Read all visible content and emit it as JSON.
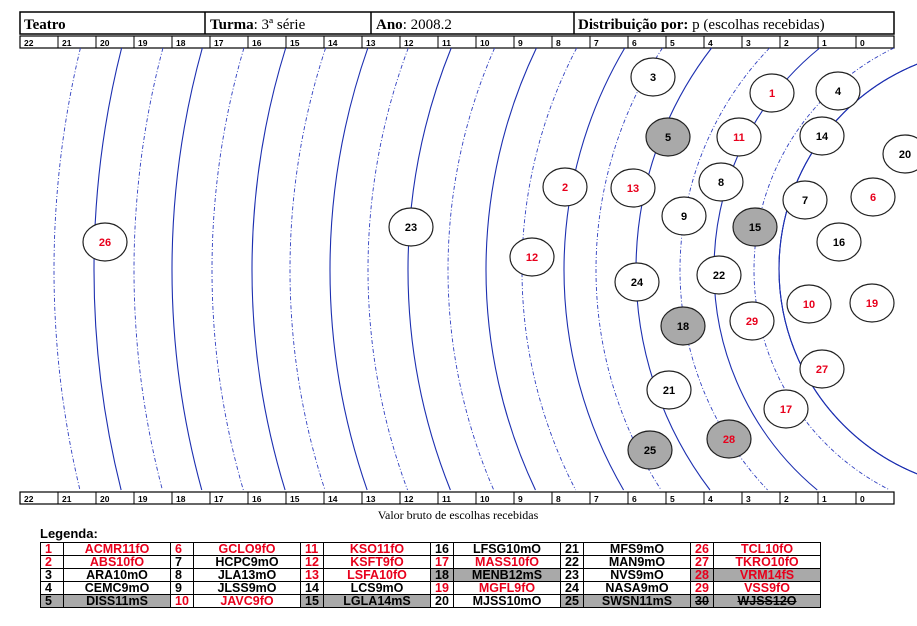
{
  "header": {
    "subject": "Teatro",
    "turma_label": "Turma",
    "turma_value": ": 3ª série",
    "ano_label": "Ano",
    "ano_value": ": 2008.2",
    "dist_label": "Distribuição por:",
    "dist_value": " p (escolhas recebidas)"
  },
  "chart_data": {
    "type": "scatter",
    "xlabel": "Valor bruto de escolhas recebidas",
    "scale_ticks": [
      "22",
      "21",
      "20",
      "19",
      "18",
      "17",
      "16",
      "15",
      "14",
      "13",
      "12",
      "11",
      "10",
      "9",
      "8",
      "7",
      "6",
      "5",
      "4",
      "3",
      "2",
      "1",
      "0"
    ],
    "nodes": [
      {
        "label": "1",
        "color": "red",
        "fill": "white"
      },
      {
        "label": "2",
        "color": "red",
        "fill": "white"
      },
      {
        "label": "3",
        "color": "black",
        "fill": "white"
      },
      {
        "label": "4",
        "color": "black",
        "fill": "white"
      },
      {
        "label": "5",
        "color": "black",
        "fill": "grey"
      },
      {
        "label": "6",
        "color": "red",
        "fill": "white"
      },
      {
        "label": "7",
        "color": "black",
        "fill": "white"
      },
      {
        "label": "8",
        "color": "black",
        "fill": "white"
      },
      {
        "label": "9",
        "color": "black",
        "fill": "white"
      },
      {
        "label": "10",
        "color": "red",
        "fill": "white"
      },
      {
        "label": "11",
        "color": "red",
        "fill": "white"
      },
      {
        "label": "12",
        "color": "red",
        "fill": "white"
      },
      {
        "label": "13",
        "color": "red",
        "fill": "white"
      },
      {
        "label": "14",
        "color": "black",
        "fill": "white"
      },
      {
        "label": "15",
        "color": "black",
        "fill": "grey"
      },
      {
        "label": "16",
        "color": "black",
        "fill": "white"
      },
      {
        "label": "17",
        "color": "red",
        "fill": "white"
      },
      {
        "label": "18",
        "color": "black",
        "fill": "grey"
      },
      {
        "label": "19",
        "color": "red",
        "fill": "white"
      },
      {
        "label": "20",
        "color": "black",
        "fill": "white"
      },
      {
        "label": "21",
        "color": "black",
        "fill": "white"
      },
      {
        "label": "22",
        "color": "black",
        "fill": "white"
      },
      {
        "label": "23",
        "color": "black",
        "fill": "white"
      },
      {
        "label": "24",
        "color": "black",
        "fill": "white"
      },
      {
        "label": "25",
        "color": "black",
        "fill": "grey"
      },
      {
        "label": "26",
        "color": "red",
        "fill": "white"
      },
      {
        "label": "27",
        "color": "red",
        "fill": "white"
      },
      {
        "label": "28",
        "color": "red",
        "fill": "grey"
      },
      {
        "label": "29",
        "color": "red",
        "fill": "white"
      }
    ]
  },
  "legend": {
    "title": "Legenda:",
    "rows": [
      [
        {
          "n": "1",
          "code": "ACMR11fO",
          "color": "red"
        },
        {
          "n": "6",
          "code": "GCLO9fO",
          "color": "red"
        },
        {
          "n": "11",
          "code": "KSO11fO",
          "color": "red"
        },
        {
          "n": "16",
          "code": "LFSG10mO",
          "color": "black"
        },
        {
          "n": "21",
          "code": "MFS9mO",
          "color": "black"
        },
        {
          "n": "26",
          "code": "TCL10fO",
          "color": "red"
        }
      ],
      [
        {
          "n": "2",
          "code": "ABS10fO",
          "color": "red"
        },
        {
          "n": "7",
          "code": "HCPC9mO",
          "color": "black"
        },
        {
          "n": "12",
          "code": "KSFT9fO",
          "color": "red"
        },
        {
          "n": "17",
          "code": "MASS10fO",
          "color": "red"
        },
        {
          "n": "22",
          "code": "MAN9mO",
          "color": "black"
        },
        {
          "n": "27",
          "code": "TKRO10fO",
          "color": "red"
        }
      ],
      [
        {
          "n": "3",
          "code": "ARA10mO",
          "color": "black"
        },
        {
          "n": "8",
          "code": "JLA13mO",
          "color": "black"
        },
        {
          "n": "13",
          "code": "LSFA10fO",
          "color": "red"
        },
        {
          "n": "18",
          "code": "MENB12mS",
          "color": "black",
          "grey": true
        },
        {
          "n": "23",
          "code": "NVS9mO",
          "color": "black"
        },
        {
          "n": "28",
          "code": "VRM14fS",
          "color": "red",
          "grey": true
        }
      ],
      [
        {
          "n": "4",
          "code": "CEMC9mO",
          "color": "black"
        },
        {
          "n": "9",
          "code": "JLSS9mO",
          "color": "black"
        },
        {
          "n": "14",
          "code": "LCS9mO",
          "color": "black"
        },
        {
          "n": "19",
          "code": "MGFL9fO",
          "color": "red"
        },
        {
          "n": "24",
          "code": "NASA9mO",
          "color": "black"
        },
        {
          "n": "29",
          "code": "VSS9fO",
          "color": "red"
        }
      ],
      [
        {
          "n": "5",
          "code": "DISS11mS",
          "color": "black",
          "grey": true
        },
        {
          "n": "10",
          "code": "JAVC9fO",
          "color": "red"
        },
        {
          "n": "15",
          "code": "LGLA14mS",
          "color": "black",
          "grey": true
        },
        {
          "n": "20",
          "code": "MJSS10mO",
          "color": "black"
        },
        {
          "n": "25",
          "code": "SWSN11mS",
          "color": "black",
          "grey": true
        },
        {
          "n": "30",
          "code": "WJSS12O",
          "color": "black",
          "grey": true,
          "strike": true
        }
      ]
    ]
  }
}
